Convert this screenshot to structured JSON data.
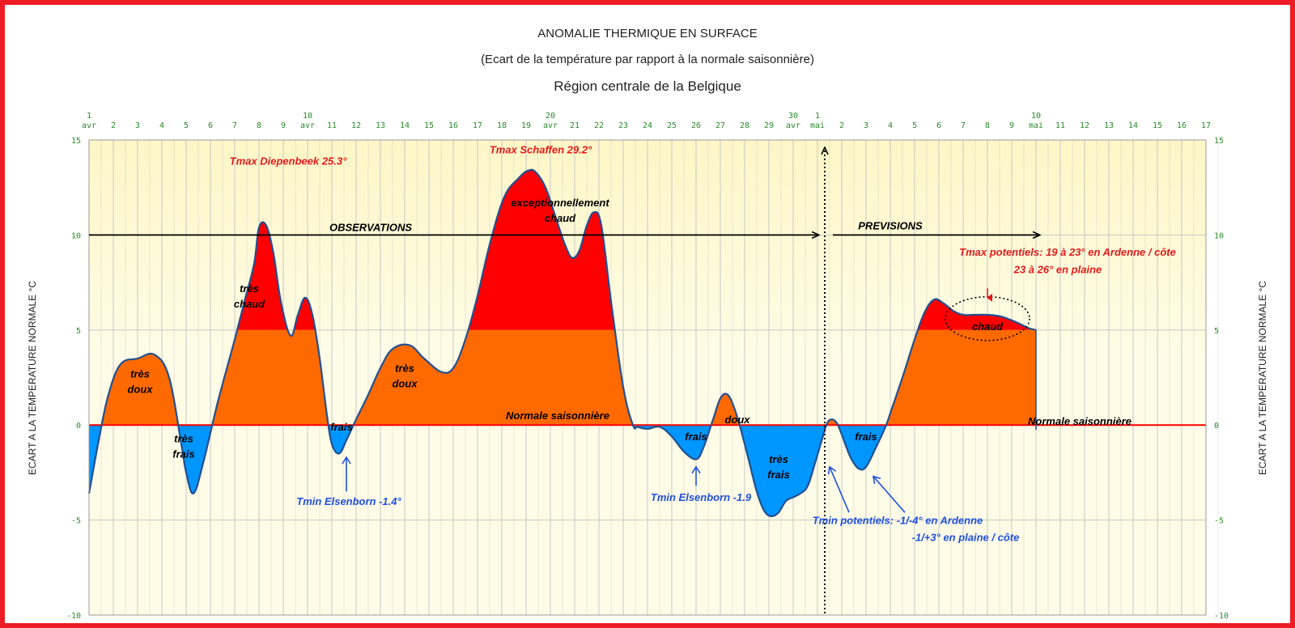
{
  "titles": {
    "line1": "ANOMALIE THERMIQUE EN SURFACE",
    "line2": "(Ecart de la température par rapport à la normale saisonnière)",
    "line3": "Région centrale de la Belgique"
  },
  "chart_data": {
    "type": "area",
    "title": "ANOMALIE THERMIQUE EN SURFACE",
    "subtitle": "(Ecart de la température par rapport à la normale saisonnière)",
    "region": "Région centrale de la Belgique",
    "ylabel_left": "ECART A LA TEMPERATURE NORMALE °C",
    "ylabel_right": "ECART A LA TEMPERATURE NORMALE °C",
    "ylim": [
      -10,
      15
    ],
    "xlim": [
      1,
      47
    ],
    "yticks": [
      15,
      10,
      5,
      0,
      -5,
      -10
    ],
    "grid": true,
    "x_ticks": [
      {
        "x": 1,
        "top": "1",
        "bottom": "avr"
      },
      {
        "x": 2,
        "top": "2",
        "bottom": ""
      },
      {
        "x": 3,
        "top": "3",
        "bottom": ""
      },
      {
        "x": 4,
        "top": "4",
        "bottom": ""
      },
      {
        "x": 5,
        "top": "5",
        "bottom": ""
      },
      {
        "x": 6,
        "top": "6",
        "bottom": ""
      },
      {
        "x": 7,
        "top": "7",
        "bottom": ""
      },
      {
        "x": 8,
        "top": "8",
        "bottom": ""
      },
      {
        "x": 9,
        "top": "9",
        "bottom": ""
      },
      {
        "x": 10,
        "top": "10",
        "bottom": "avr"
      },
      {
        "x": 11,
        "top": "11",
        "bottom": ""
      },
      {
        "x": 12,
        "top": "12",
        "bottom": ""
      },
      {
        "x": 13,
        "top": "13",
        "bottom": ""
      },
      {
        "x": 14,
        "top": "14",
        "bottom": ""
      },
      {
        "x": 15,
        "top": "15",
        "bottom": ""
      },
      {
        "x": 16,
        "top": "16",
        "bottom": ""
      },
      {
        "x": 17,
        "top": "17",
        "bottom": ""
      },
      {
        "x": 18,
        "top": "18",
        "bottom": ""
      },
      {
        "x": 19,
        "top": "19",
        "bottom": ""
      },
      {
        "x": 20,
        "top": "20",
        "bottom": "avr"
      },
      {
        "x": 21,
        "top": "21",
        "bottom": ""
      },
      {
        "x": 22,
        "top": "22",
        "bottom": ""
      },
      {
        "x": 23,
        "top": "23",
        "bottom": ""
      },
      {
        "x": 24,
        "top": "24",
        "bottom": ""
      },
      {
        "x": 25,
        "top": "25",
        "bottom": ""
      },
      {
        "x": 26,
        "top": "26",
        "bottom": ""
      },
      {
        "x": 27,
        "top": "27",
        "bottom": ""
      },
      {
        "x": 28,
        "top": "28",
        "bottom": ""
      },
      {
        "x": 29,
        "top": "29",
        "bottom": ""
      },
      {
        "x": 30,
        "top": "30",
        "bottom": "avr"
      },
      {
        "x": 31,
        "top": "1",
        "bottom": "mai"
      },
      {
        "x": 32,
        "top": "2",
        "bottom": ""
      },
      {
        "x": 33,
        "top": "3",
        "bottom": ""
      },
      {
        "x": 34,
        "top": "4",
        "bottom": ""
      },
      {
        "x": 35,
        "top": "5",
        "bottom": ""
      },
      {
        "x": 36,
        "top": "6",
        "bottom": ""
      },
      {
        "x": 37,
        "top": "7",
        "bottom": ""
      },
      {
        "x": 38,
        "top": "8",
        "bottom": ""
      },
      {
        "x": 39,
        "top": "9",
        "bottom": ""
      },
      {
        "x": 40,
        "top": "10",
        "bottom": "mai"
      },
      {
        "x": 41,
        "top": "11",
        "bottom": ""
      },
      {
        "x": 42,
        "top": "12",
        "bottom": ""
      },
      {
        "x": 43,
        "top": "13",
        "bottom": ""
      },
      {
        "x": 44,
        "top": "14",
        "bottom": ""
      },
      {
        "x": 45,
        "top": "15",
        "bottom": ""
      },
      {
        "x": 46,
        "top": "16",
        "bottom": ""
      },
      {
        "x": 47,
        "top": "17",
        "bottom": ""
      }
    ],
    "series": [
      {
        "x": [
          1.0,
          1.4,
          1.8,
          2.3,
          3.0,
          3.7,
          4.3,
          4.8,
          5.0,
          5.3,
          5.7,
          6.3,
          7.0,
          7.4,
          7.8,
          8.0,
          8.3,
          8.6,
          8.9,
          9.3,
          9.6,
          9.9,
          10.2,
          10.5,
          10.8,
          11.0,
          11.3,
          11.6,
          12.0,
          12.5,
          13.0,
          13.5,
          14.2,
          14.8,
          15.5,
          16.0,
          16.5,
          17.0,
          17.5,
          18.1,
          18.7,
          19.1,
          19.4,
          19.8,
          20.2,
          20.6,
          20.9,
          21.2,
          21.5,
          21.8,
          22.1,
          22.5,
          23.0,
          23.4,
          23.6,
          24.0,
          24.5,
          25.0,
          25.5,
          26.0,
          26.3,
          26.7,
          27.0,
          27.3,
          27.6,
          27.9,
          28.2,
          28.5,
          28.8,
          29.1,
          29.4,
          29.7,
          30.0,
          30.3,
          30.6,
          30.9,
          31.2,
          31.4,
          31.6,
          31.8,
          32.0,
          32.2,
          32.4,
          32.7,
          33.0,
          33.4,
          33.8,
          34.1,
          34.5,
          35.0,
          35.4,
          35.8,
          36.2,
          36.6,
          37.0,
          37.4,
          38.0,
          38.6,
          39.2,
          39.7,
          40.0,
          40.0,
          41.0,
          42.0,
          43.0,
          44.0,
          45.0,
          46.0,
          47.0
        ],
        "y": [
          -3.6,
          -0.8,
          1.6,
          3.2,
          3.5,
          3.7,
          2.5,
          -1.0,
          -2.5,
          -3.6,
          -2.0,
          1.2,
          4.5,
          6.5,
          8.5,
          10.4,
          10.5,
          9.0,
          6.5,
          4.7,
          5.8,
          6.7,
          5.8,
          3.5,
          0.5,
          -1.0,
          -1.5,
          -0.8,
          0.3,
          1.6,
          3.0,
          4.0,
          4.2,
          3.5,
          2.8,
          3.0,
          4.5,
          6.8,
          9.5,
          12.0,
          13.0,
          13.4,
          13.3,
          12.5,
          11.0,
          9.5,
          8.8,
          9.2,
          10.5,
          11.2,
          10.5,
          6.5,
          2.0,
          0.0,
          -0.1,
          -0.2,
          -0.1,
          -0.6,
          -1.4,
          -1.8,
          -1.2,
          0.3,
          1.4,
          1.6,
          0.8,
          -0.5,
          -2.0,
          -3.5,
          -4.5,
          -4.8,
          -4.6,
          -4.0,
          -3.8,
          -3.6,
          -3.2,
          -2.0,
          -0.7,
          0.1,
          0.3,
          0.1,
          -0.5,
          -1.2,
          -1.8,
          -2.3,
          -2.2,
          -1.2,
          -0.1,
          1.0,
          2.5,
          4.5,
          5.9,
          6.6,
          6.4,
          6.0,
          5.8,
          5.8,
          5.8,
          5.7,
          5.4,
          5.1,
          5.0,
          0.0,
          0.0,
          0.0,
          0.0,
          0.0,
          0.0,
          0.0,
          0.0
        ]
      }
    ],
    "bands": {
      "normal_fill": "#ff6a00",
      "hot_fill": "#ff0000",
      "cold_fill": "#0096ff",
      "hot_threshold": 5
    },
    "colors": {
      "curve": "#244f8f",
      "plot_bg": "#fefce6",
      "plot_bg_top": "#fdf6c6",
      "border": "#ee1c25",
      "normal_line": "#ff0000",
      "grid": "#c8c8c8",
      "arrow": "#000000",
      "red_text": "#e31a1c",
      "blue_text": "#1f4fe0"
    },
    "forecast_start_x": 31.3,
    "labels": [
      {
        "id": "lbl-tres-doux-1",
        "lines": [
          "très",
          "doux"
        ],
        "x": 3.1,
        "y": 2.5,
        "color": "#000000"
      },
      {
        "id": "lbl-tres-frais-1",
        "lines": [
          "très",
          "frais"
        ],
        "x": 4.9,
        "y": -0.9,
        "color": "#000000"
      },
      {
        "id": "lbl-tres-chaud",
        "lines": [
          "très",
          "chaud"
        ],
        "x": 7.6,
        "y": 7.0,
        "color": "#000000"
      },
      {
        "id": "lbl-frais-1",
        "lines": [
          "frais"
        ],
        "x": 11.4,
        "y": -0.3,
        "color": "#000000"
      },
      {
        "id": "lbl-tres-doux-2",
        "lines": [
          "très",
          "doux"
        ],
        "x": 14.0,
        "y": 2.8,
        "color": "#000000"
      },
      {
        "id": "lbl-exceptionnellement",
        "lines": [
          "exceptionnellement",
          "chaud"
        ],
        "x": 20.4,
        "y": 11.5,
        "color": "#000000"
      },
      {
        "id": "lbl-normale-1",
        "lines": [
          "Normale saisonnière"
        ],
        "x": 20.3,
        "y": 0.3,
        "color": "#000000"
      },
      {
        "id": "lbl-frais-2",
        "lines": [
          "frais"
        ],
        "x": 26.0,
        "y": -0.8,
        "color": "#000000"
      },
      {
        "id": "lbl-doux",
        "lines": [
          "doux"
        ],
        "x": 27.7,
        "y": 0.1,
        "color": "#000000"
      },
      {
        "id": "lbl-tres-frais-2",
        "lines": [
          "très",
          "frais"
        ],
        "x": 29.4,
        "y": -2.0,
        "color": "#000000"
      },
      {
        "id": "lbl-frais-3",
        "lines": [
          "frais"
        ],
        "x": 33.0,
        "y": -0.8,
        "color": "#000000"
      },
      {
        "id": "lbl-chaud",
        "lines": [
          "chaud"
        ],
        "x": 38.0,
        "y": 5.0,
        "color": "#000000"
      },
      {
        "id": "lbl-normale-2",
        "lines": [
          "Normale saisonnière"
        ],
        "x": 41.8,
        "y": 0.0,
        "color": "#000000"
      },
      {
        "id": "lbl-observations",
        "lines": [
          "OBSERVATIONS"
        ],
        "x": 12.6,
        "y": 10.2,
        "color": "#000000"
      },
      {
        "id": "lbl-previsions",
        "lines": [
          "PREVISIONS"
        ],
        "x": 34.0,
        "y": 10.3,
        "color": "#000000"
      }
    ],
    "red_notes": [
      {
        "id": "tmax-diepenbeek",
        "text": "Tmax Diepenbeek 25.3°",
        "x": 9.2,
        "y": 13.7
      },
      {
        "id": "tmax-schaffen",
        "text": "Tmax Schaffen 29.2°",
        "x": 19.6,
        "y": 14.3
      },
      {
        "id": "tmax-potentiels-1",
        "text": "Tmax potentiels:  19 à 23° en Ardenne / côte",
        "x": 41.3,
        "y": 8.9
      },
      {
        "id": "tmax-potentiels-2",
        "text": "23 à 26° en plaine",
        "x": 40.9,
        "y": 8.0
      }
    ],
    "blue_notes": [
      {
        "id": "tmin-elsenborn-1",
        "text": "Tmin Elsenborn -1.4°",
        "x": 11.7,
        "y": -4.2
      },
      {
        "id": "tmin-elsenborn-2",
        "text": "Tmin Elsenborn -1.9",
        "x": 26.2,
        "y": -4.0
      },
      {
        "id": "tmin-potentiels-1",
        "text": "Tmin potentiels:  -1/-4° en Ardenne",
        "x": 34.3,
        "y": -5.2
      },
      {
        "id": "tmin-potentiels-2",
        "text": "-1/+3° en plaine / côte",
        "x": 37.1,
        "y": -6.1
      }
    ]
  }
}
